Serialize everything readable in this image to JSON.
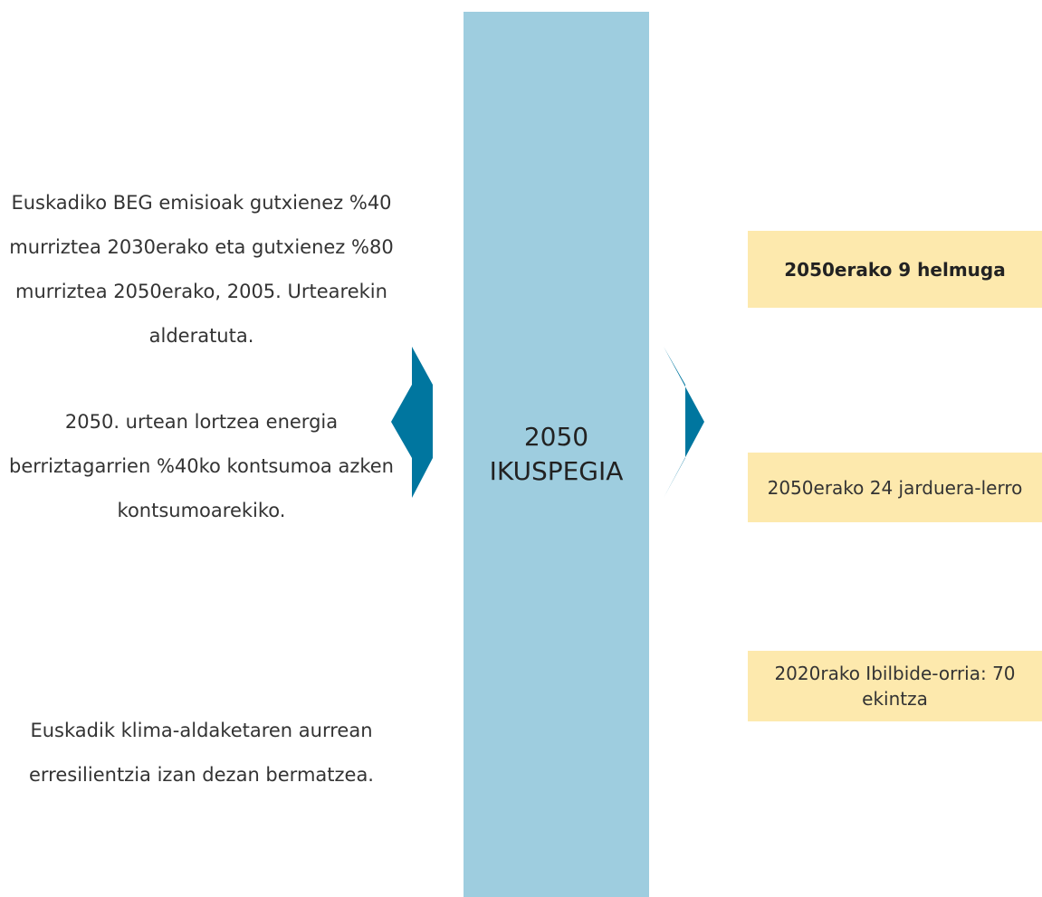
{
  "left": [
    "Euskadiko BEG emisioak gutxienez %40 murriztea 2030erako eta gutxienez %80 murriztea 2050erako, 2005. Urtearekin alderatuta.",
    "2050. urtean lortzea energia berriztagarrien %40ko kontsumoa azken kontsumoarekiko.",
    "Euskadik klima-aldaketaren aurrean erresilientzia izan dezan bermatzea."
  ],
  "center": [
    "2050",
    "IKUSPEGIA"
  ],
  "right": [
    "2050erako 9 helmuga",
    "2050erako 24 jarduera-lerro",
    "2020rako Ibilbide-orria: 70 ekintza"
  ]
}
